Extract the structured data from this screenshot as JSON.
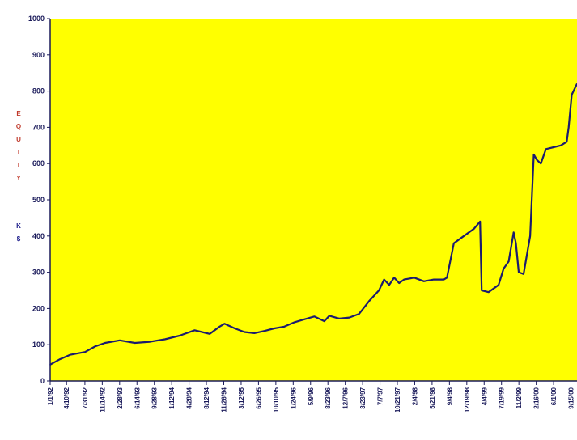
{
  "chart_data": {
    "type": "line",
    "title": "",
    "xlabel": "",
    "ylabel_letters": [
      "E",
      "Q",
      "U",
      "I",
      "T",
      "Y",
      "K",
      "$"
    ],
    "ylim": [
      0,
      1000
    ],
    "yticks": [
      0,
      100,
      200,
      300,
      400,
      500,
      600,
      700,
      800,
      900,
      1000
    ],
    "grid": false,
    "legend": "none",
    "xlim": [
      "1/1/92",
      "10/22/00"
    ],
    "xticks": [
      "1/1/92",
      "4/10/92",
      "7/31/92",
      "11/14/92",
      "2/28/93",
      "6/14/93",
      "9/28/93",
      "1/12/94",
      "4/28/94",
      "8/12/94",
      "11/26/94",
      "3/12/95",
      "6/26/95",
      "10/10/95",
      "1/24/96",
      "5/9/96",
      "8/23/96",
      "12/7/96",
      "3/23/97",
      "7/7/97",
      "10/21/97",
      "2/4/98",
      "5/21/98",
      "9/4/98",
      "12/19/98",
      "4/4/99",
      "7/19/99",
      "11/2/99",
      "2/16/00",
      "6/1/00",
      "9/15/00"
    ],
    "series": [
      {
        "x": [
          "1/1/92",
          "3/1/92",
          "5/1/92",
          "8/1/92",
          "10/1/92",
          "12/1/92",
          "3/1/93",
          "6/1/93",
          "9/1/93",
          "12/1/93",
          "3/1/94",
          "6/1/94",
          "9/1/94",
          "11/1/94",
          "12/1/94",
          "2/1/95",
          "4/1/95",
          "6/1/95",
          "8/1/95",
          "10/1/95",
          "12/1/95",
          "2/1/96",
          "4/1/96",
          "6/1/96",
          "8/1/96",
          "9/1/96",
          "11/1/96",
          "1/1/97",
          "3/1/97",
          "5/1/97",
          "7/1/97",
          "8/1/97",
          "9/1/97",
          "10/1/97",
          "11/1/97",
          "12/1/97",
          "2/1/98",
          "4/1/98",
          "6/1/98",
          "8/1/98",
          "8/20/98",
          "10/1/98",
          "12/1/98",
          "2/1/99",
          "3/10/99",
          "3/20/99",
          "5/1/99",
          "7/1/99",
          "8/1/99",
          "9/1/99",
          "10/1/99",
          "10/15/99",
          "11/1/99",
          "12/1/99",
          "1/10/00",
          "2/1/00",
          "2/20/00",
          "3/15/00",
          "4/15/00",
          "6/1/00",
          "7/15/00",
          "8/20/00",
          "9/1/00",
          "9/20/00",
          "10/22/00"
        ],
        "values": [
          45,
          60,
          72,
          80,
          95,
          105,
          112,
          105,
          108,
          115,
          125,
          140,
          130,
          150,
          158,
          145,
          135,
          132,
          138,
          145,
          150,
          162,
          170,
          178,
          165,
          180,
          172,
          175,
          185,
          220,
          250,
          280,
          265,
          285,
          270,
          280,
          285,
          275,
          280,
          280,
          285,
          380,
          400,
          420,
          440,
          250,
          245,
          265,
          310,
          330,
          410,
          380,
          300,
          295,
          400,
          625,
          610,
          600,
          640,
          645,
          650,
          660,
          700,
          790,
          820
        ]
      }
    ]
  }
}
